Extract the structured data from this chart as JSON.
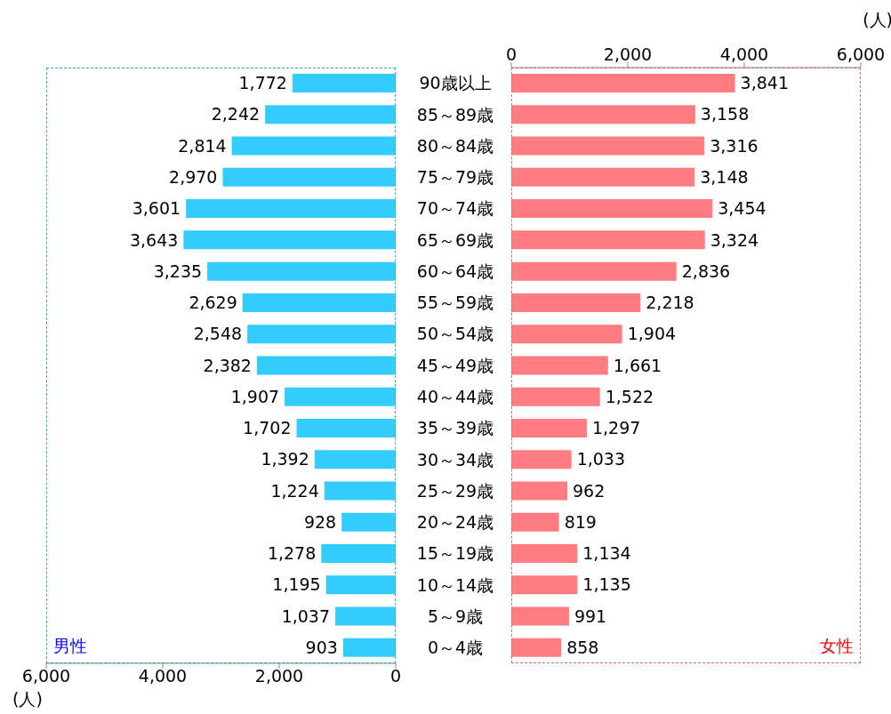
{
  "chart_data": [
    {
      "type": "bar",
      "orientation": "horizontal",
      "categories": [
        "90歳以上",
        "85～89歳",
        "80～84歳",
        "75～79歳",
        "70～74歳",
        "65～69歳",
        "60～64歳",
        "55～59歳",
        "50～54歳",
        "45～49歳",
        "40～44歳",
        "35～39歳",
        "30～34歳",
        "25～29歳",
        "20～24歳",
        "15～19歳",
        "10～14歳",
        "5～9歳",
        "0～4歳"
      ],
      "series": [
        {
          "color": "#33ccff",
          "values": [
            1772,
            2242,
            2814,
            2970,
            3601,
            3643,
            3235,
            2629,
            2548,
            2382,
            1907,
            1702,
            1392,
            1224,
            928,
            1278,
            1195,
            1037,
            903
          ],
          "value_labels": [
            "1,772",
            "2,242",
            "2,814",
            "2,970",
            "3,601",
            "3,643",
            "3,235",
            "2,629",
            "2,548",
            "2,382",
            "1,907",
            "1,702",
            "1,392",
            "1,224",
            "928",
            "1,278",
            "1,195",
            "1,037",
            "903"
          ]
        }
      ],
      "xlim": [
        6000,
        0
      ],
      "xticks": [
        {
          "value": 6000,
          "label": "6,000"
        },
        {
          "value": 4000,
          "label": "4,000"
        },
        {
          "value": 2000,
          "label": "2,000"
        },
        0
      ],
      "xlabel": "(人)",
      "annotations": [
        "男性"
      ]
    },
    {
      "type": "bar",
      "orientation": "horizontal",
      "categories": [
        null,
        null,
        null,
        null,
        null,
        null,
        null,
        null,
        null,
        null,
        null,
        null,
        null,
        null,
        null,
        null,
        null,
        null,
        null
      ],
      "series": [
        {
          "color": "#ff7c80",
          "values": [
            3841,
            3158,
            3316,
            3148,
            3454,
            3324,
            2836,
            2218,
            1904,
            1661,
            1522,
            1297,
            1033,
            962,
            819,
            1134,
            1135,
            991,
            858
          ],
          "value_labels": [
            "3,841",
            "3,158",
            "3,316",
            "3,148",
            "3,454",
            "3,324",
            "2,836",
            "2,218",
            "1,904",
            "1,661",
            "1,522",
            "1,297",
            "1,033",
            "962",
            "819",
            "1,134",
            "1,135",
            "991",
            "858"
          ]
        }
      ],
      "x2lim": [
        0,
        6000
      ],
      "x2ticks": [
        0,
        {
          "value": 2000,
          "label": "2,000"
        },
        {
          "value": 4000,
          "label": "4,000"
        },
        {
          "value": 6000,
          "label": "6,000"
        }
      ],
      "x2label": "(人)",
      "tick_labels": "x",
      "annotations": [
        "女性"
      ]
    }
  ]
}
